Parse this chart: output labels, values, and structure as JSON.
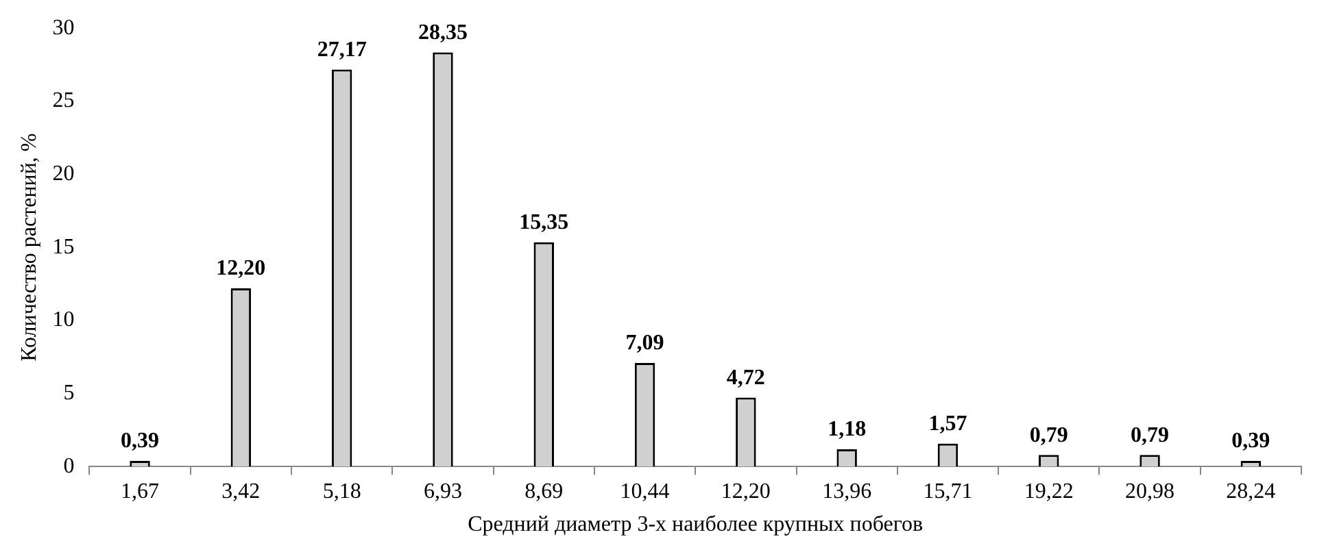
{
  "chart_data": {
    "type": "bar",
    "xlabel": "Средний диаметр 3-х наиболее крупных побегов",
    "ylabel": "Количество растений, %",
    "categories": [
      "1,67",
      "3,42",
      "5,18",
      "6,93",
      "8,69",
      "10,44",
      "12,20",
      "13,96",
      "15,71",
      "19,22",
      "20,98",
      "28,24"
    ],
    "values": [
      0.39,
      12.2,
      27.17,
      28.35,
      15.35,
      7.09,
      4.72,
      1.18,
      1.57,
      0.79,
      0.79,
      0.39
    ],
    "value_labels": [
      "0,39",
      "12,20",
      "27,17",
      "28,35",
      "15,35",
      "7,09",
      "4,72",
      "1,18",
      "1,57",
      "0,79",
      "0,79",
      "0,39"
    ],
    "color": "#d0d0d0",
    "ylim": [
      0,
      30
    ],
    "yticks": [
      0,
      5,
      10,
      15,
      20,
      25,
      30
    ],
    "grid": false,
    "legend": false
  }
}
